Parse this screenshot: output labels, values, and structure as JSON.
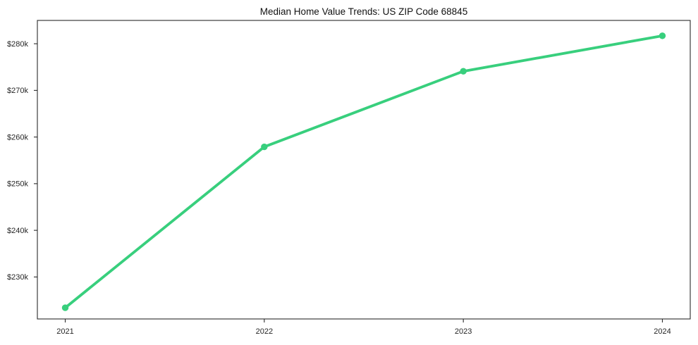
{
  "chart_data": {
    "type": "line",
    "title": "Median Home Value Trends: US ZIP Code 68845",
    "x": [
      2021,
      2022,
      2023,
      2024
    ],
    "x_tick_labels": [
      "2021",
      "2022",
      "2023",
      "2024"
    ],
    "series": [
      {
        "name": "Median Home Value",
        "values": [
          223400,
          257900,
          274100,
          281700
        ]
      }
    ],
    "y_ticks": [
      230000,
      240000,
      250000,
      260000,
      270000,
      280000
    ],
    "y_tick_labels": [
      "$230k",
      "$240k",
      "$250k",
      "$260k",
      "$270k",
      "$280k"
    ],
    "xlabel": "",
    "ylabel": "",
    "xlim": [
      2020.86,
      2024.14
    ],
    "ylim": [
      221000,
      285000
    ],
    "grid": false,
    "legend": "none",
    "colors": {
      "line": "#38cf7d",
      "marker": "#38cf7d",
      "axis": "#2b2b2b",
      "tick_label": "#262626",
      "title": "#111111",
      "background": "#ffffff"
    }
  }
}
